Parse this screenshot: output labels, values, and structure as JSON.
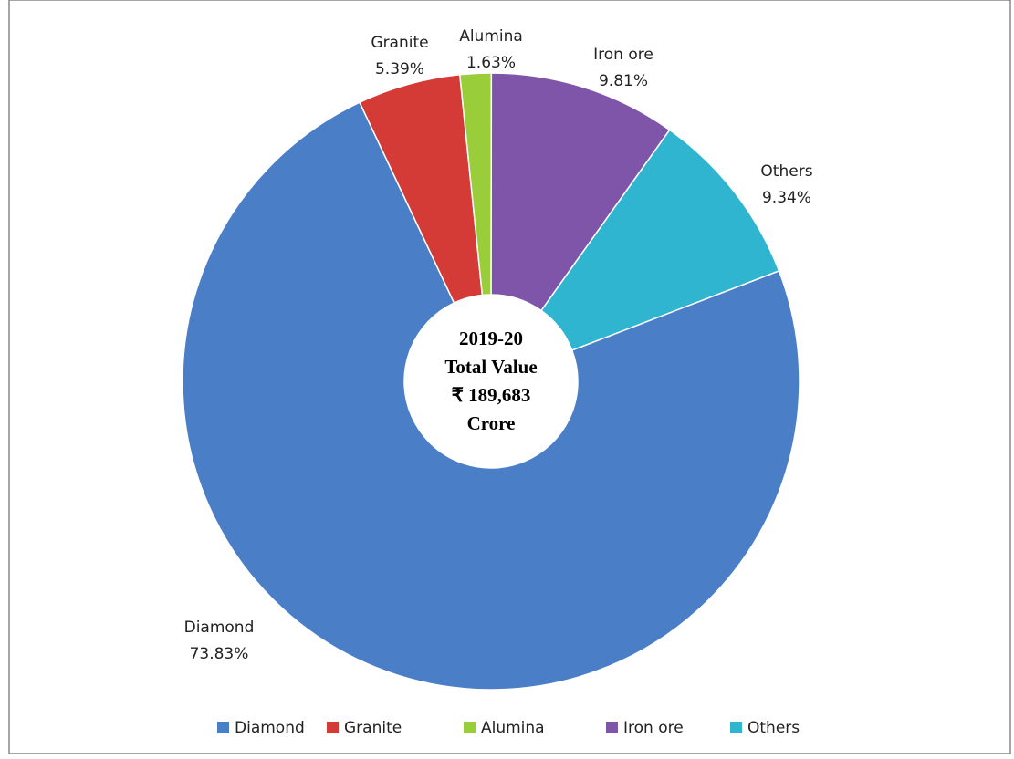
{
  "chart_data": {
    "type": "donut",
    "categories": [
      "Diamond",
      "Granite",
      "Alumina",
      "Iron ore",
      "Others"
    ],
    "values": [
      73.83,
      5.39,
      1.63,
      9.81,
      9.34
    ],
    "value_labels": [
      "73.83%",
      "5.39%",
      "1.63%",
      "9.81%",
      "9.34%"
    ],
    "colors": [
      "#4a7fc8",
      "#d43b36",
      "#9acd3a",
      "#7e55a8",
      "#2fb5d0"
    ],
    "center_text": [
      "2019-20",
      "Total Value",
      "₹ 189,683",
      "Crore"
    ],
    "legend": "bottom"
  }
}
